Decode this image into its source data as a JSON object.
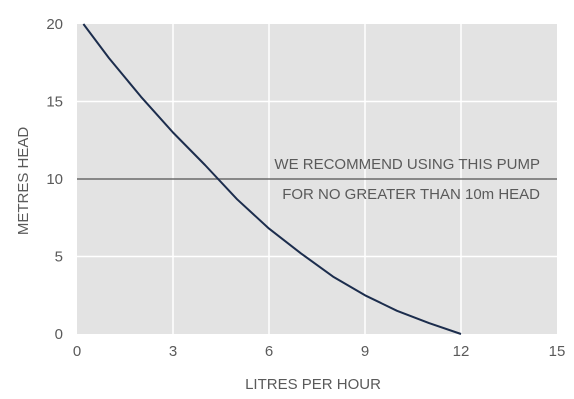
{
  "chart_data": {
    "type": "line",
    "title": "",
    "xlabel": "LITRES PER HOUR",
    "ylabel": "METRES HEAD",
    "xlim": [
      0,
      15
    ],
    "ylim": [
      0,
      20
    ],
    "x_ticks": [
      0,
      3,
      6,
      9,
      12,
      15
    ],
    "y_ticks": [
      0,
      5,
      10,
      15,
      20
    ],
    "x_tick_labels": [
      "0",
      "3",
      "6",
      "9",
      "12",
      "15"
    ],
    "y_tick_labels": [
      "0",
      "5",
      "10",
      "15",
      "20"
    ],
    "grid": true,
    "series": [
      {
        "x": [
          0.2,
          1,
          2,
          3,
          4,
          5,
          6,
          7,
          8,
          9,
          10,
          11,
          12
        ],
        "y": [
          20,
          17.8,
          15.3,
          13.0,
          10.9,
          8.7,
          6.8,
          5.2,
          3.7,
          2.5,
          1.5,
          0.7,
          0
        ],
        "color": "#1c2d4d"
      }
    ],
    "reference_line": {
      "y": 10,
      "color": "#6b6b6b"
    },
    "annotation": {
      "line1": "WE RECOMMEND USING THIS PUMP",
      "line2": "FOR NO GREATER THAN 10m HEAD"
    },
    "colors": {
      "plot_background": "#e3e3e3",
      "grid": "#ffffff",
      "text": "#5a5a5a"
    }
  }
}
